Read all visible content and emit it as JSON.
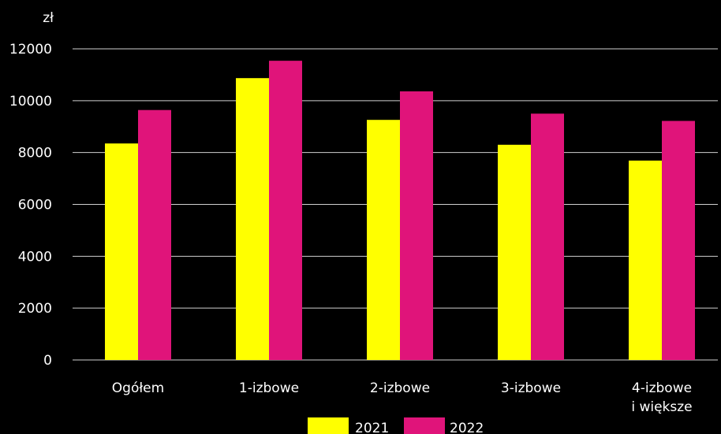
{
  "chart_data": {
    "type": "bar",
    "y_unit": "zł",
    "categories": [
      [
        "Ogółem"
      ],
      [
        "1-izbowe"
      ],
      [
        "2-izbowe"
      ],
      [
        "3-izbowe"
      ],
      [
        "4-izbowe",
        "i większe"
      ]
    ],
    "series": [
      {
        "name": "2021",
        "color": "#ffff00",
        "values": [
          8350,
          10870,
          9260,
          8300,
          7690
        ]
      },
      {
        "name": "2022",
        "color": "#e0147a",
        "values": [
          9640,
          11540,
          10360,
          9500,
          9220
        ]
      }
    ],
    "ylim": [
      0,
      12000
    ],
    "yticks": [
      0,
      2000,
      4000,
      6000,
      8000,
      10000,
      12000
    ],
    "grid": true,
    "legend": "bottom"
  }
}
